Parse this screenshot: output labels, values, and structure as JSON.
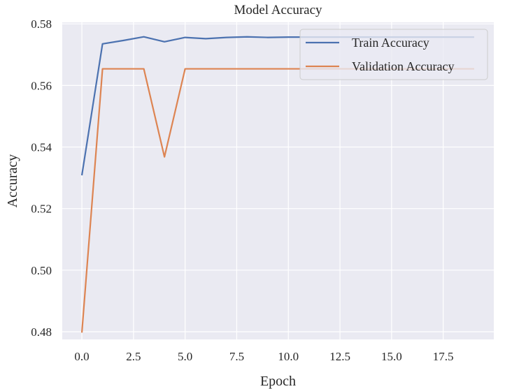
{
  "chart_data": {
    "type": "line",
    "title": "Model Accuracy",
    "xlabel": "Epoch",
    "ylabel": "Accuracy",
    "xlim": [
      -0.95,
      19.95
    ],
    "ylim": [
      0.4775,
      0.5805
    ],
    "xticks": [
      0,
      2.5,
      5,
      7.5,
      10,
      12.5,
      15,
      17.5
    ],
    "xtick_labels": [
      "0.0",
      "2.5",
      "5.0",
      "7.5",
      "10.0",
      "12.5",
      "15.0",
      "17.5"
    ],
    "yticks": [
      0.48,
      0.5,
      0.52,
      0.54,
      0.56,
      0.58
    ],
    "ytick_labels": [
      "0.48",
      "0.50",
      "0.52",
      "0.54",
      "0.56",
      "0.58"
    ],
    "grid": true,
    "legend_position": "top-right",
    "x": [
      0,
      1,
      2,
      3,
      4,
      5,
      6,
      7,
      8,
      9,
      10,
      11,
      12,
      13,
      14,
      15,
      16,
      17,
      18,
      19
    ],
    "series": [
      {
        "name": "Train Accuracy",
        "color": "#4c72b0",
        "values": [
          0.5308,
          0.5735,
          0.5746,
          0.5758,
          0.5742,
          0.5756,
          0.5752,
          0.5756,
          0.5758,
          0.5756,
          0.5757,
          0.5757,
          0.5757,
          0.5757,
          0.5757,
          0.5757,
          0.5757,
          0.5757,
          0.5757,
          0.5757
        ]
      },
      {
        "name": "Validation Accuracy",
        "color": "#dd8452",
        "values": [
          0.4797,
          0.5654,
          0.5654,
          0.5654,
          0.5368,
          0.5654,
          0.5654,
          0.5654,
          0.5654,
          0.5654,
          0.5654,
          0.5654,
          0.5654,
          0.5654,
          0.5654,
          0.5654,
          0.5654,
          0.5654,
          0.5654,
          0.5654
        ]
      }
    ]
  }
}
